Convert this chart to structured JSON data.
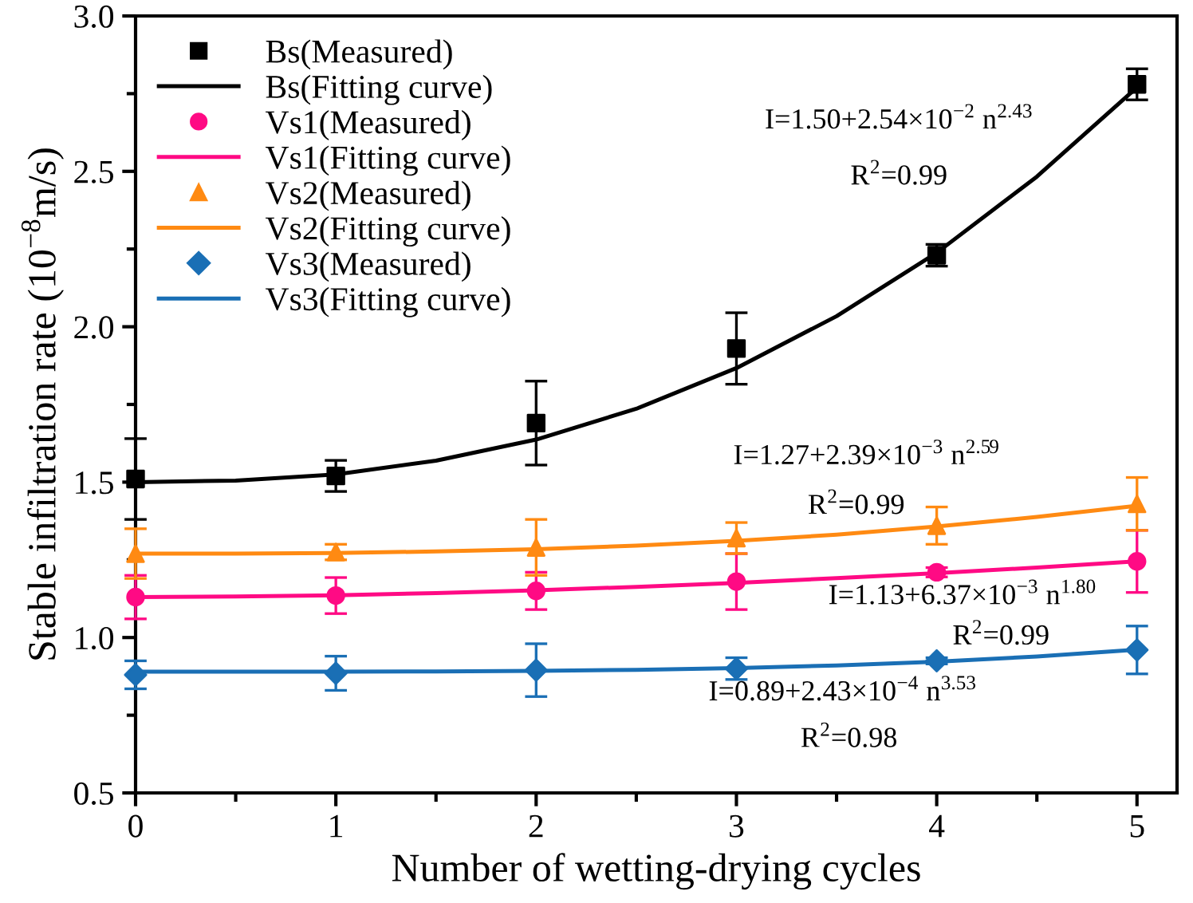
{
  "chart_data": {
    "type": "scatter",
    "xlabel": "Number of wetting-drying cycles",
    "ylabel": "Stable infiltration rate (10$^{−8}$m/s)",
    "x": [
      0,
      1,
      2,
      3,
      4,
      5
    ],
    "xlim": [
      0,
      5.2
    ],
    "xticks": [
      0,
      1,
      2,
      3,
      4,
      5
    ],
    "ylim": [
      0.5,
      3.0
    ],
    "yticks": [
      0.5,
      {
        "value": 1,
        "label": "1.0"
      },
      1.5,
      {
        "value": 2,
        "label": "2.0"
      },
      2.5,
      {
        "value": 3,
        "label": "3.0"
      }
    ],
    "grid": false,
    "legend": "top left",
    "series": [
      {
        "name": "Bs(Measured)",
        "marker": "square",
        "color": "#000000",
        "values": [
          1.51,
          1.52,
          1.69,
          1.93,
          2.23,
          2.78
        ],
        "errors": [
          0.13,
          0.05,
          0.135,
          0.115,
          0.035,
          0.05
        ]
      },
      {
        "name": "Bs(Fitting curve)",
        "type": "line",
        "line_style": "solid",
        "color": "#000000",
        "x": [
          0,
          0.5,
          1,
          1.5,
          2,
          2.5,
          3,
          3.5,
          4,
          4.5,
          5
        ],
        "values": [
          1.5,
          1.505,
          1.525,
          1.569,
          1.637,
          1.736,
          1.867,
          2.034,
          2.238,
          2.483,
          2.77
        ]
      },
      {
        "name": "Vs1(Measured)",
        "marker": "circle",
        "color": "#ff0a84",
        "values": [
          1.13,
          1.135,
          1.15,
          1.18,
          1.21,
          1.245
        ],
        "errors": [
          0.07,
          0.058,
          0.06,
          0.09,
          0.015,
          0.1
        ]
      },
      {
        "name": "Vs1(Fitting curve)",
        "type": "line",
        "line_style": "solid",
        "color": "#ff0a84",
        "x": [
          0,
          0.5,
          1,
          1.5,
          2,
          2.5,
          3,
          3.5,
          4,
          4.5,
          5
        ],
        "values": [
          1.13,
          1.132,
          1.136,
          1.143,
          1.152,
          1.163,
          1.176,
          1.191,
          1.207,
          1.225,
          1.245
        ]
      },
      {
        "name": "Vs2(Measured)",
        "marker": "triangle",
        "color": "#ff8a12",
        "values": [
          1.27,
          1.275,
          1.29,
          1.32,
          1.36,
          1.43
        ],
        "errors": [
          0.08,
          0.025,
          0.09,
          0.05,
          0.06,
          0.085
        ]
      },
      {
        "name": "Vs2(Fitting curve)",
        "type": "line",
        "line_style": "solid",
        "color": "#ff8a12",
        "x": [
          0,
          0.5,
          1,
          1.5,
          2,
          2.5,
          3,
          3.5,
          4,
          4.5,
          5
        ],
        "values": [
          1.27,
          1.27,
          1.272,
          1.277,
          1.284,
          1.296,
          1.311,
          1.331,
          1.357,
          1.388,
          1.424
        ]
      },
      {
        "name": "Vs3(Measured)",
        "marker": "diamond",
        "color": "#1a6fb5",
        "values": [
          0.88,
          0.885,
          0.895,
          0.9,
          0.925,
          0.96
        ],
        "errors": [
          0.045,
          0.055,
          0.085,
          0.035,
          0.01,
          0.077
        ]
      },
      {
        "name": "Vs3(Fitting curve)",
        "type": "line",
        "line_style": "solid",
        "color": "#1a6fb5",
        "x": [
          0,
          0.5,
          1,
          1.5,
          2,
          2.5,
          3,
          3.5,
          4,
          4.5,
          5
        ],
        "values": [
          0.89,
          0.89,
          0.89,
          0.891,
          0.893,
          0.896,
          0.902,
          0.91,
          0.922,
          0.939,
          0.961
        ]
      }
    ],
    "annotations": [
      "I=1.50+2.54×10$^{−2}$ n$^{2.43}$",
      "R$^{2}$=0.99",
      "I=1.27+2.39×10$^{−3}$ n$^{2.59}$",
      "R$^{2}$=0.99",
      "I=1.13+6.37×10$^{−3}$ n$^{1.80}$",
      "R$^{2}$=0.99",
      "I=0.89+2.43×10$^{−4}$ n$^{3.53}$",
      "R$^{2}$=0.98"
    ]
  }
}
